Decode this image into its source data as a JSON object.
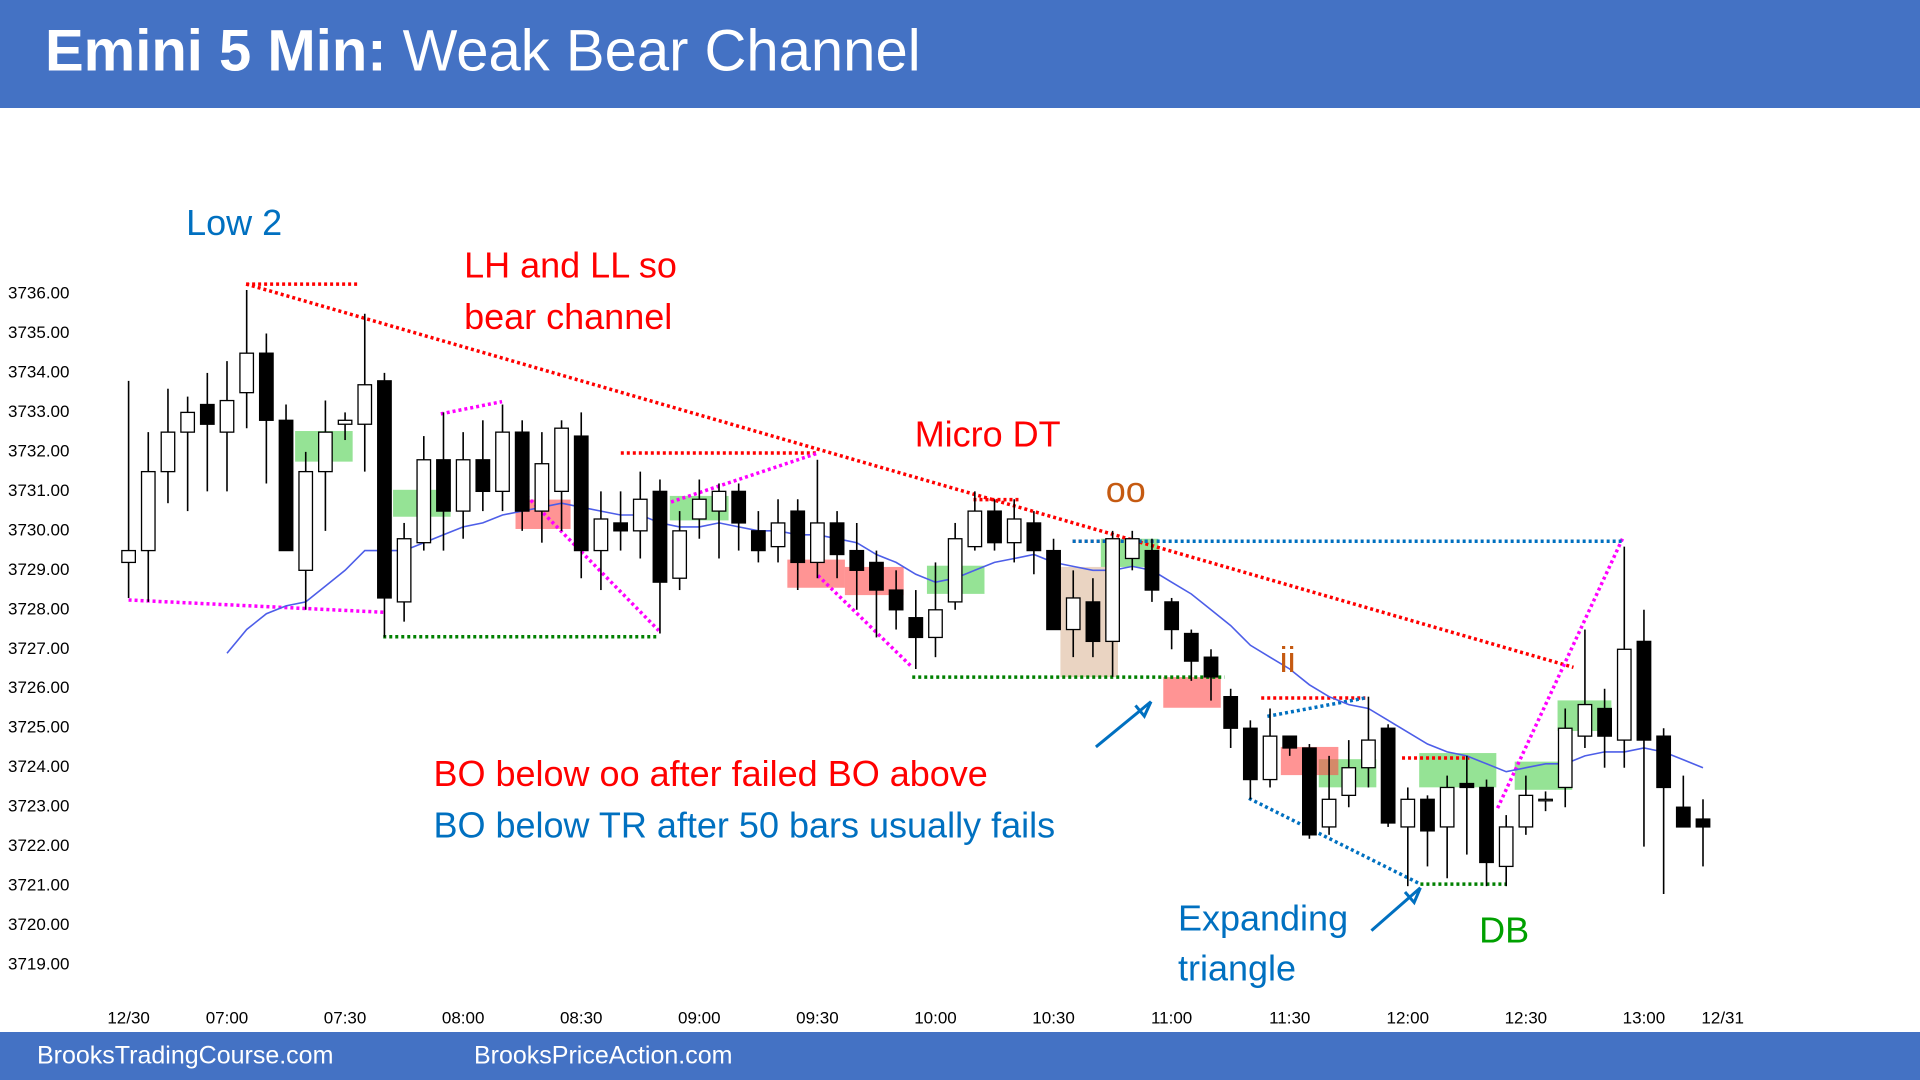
{
  "chart_data": {
    "type": "candlestick",
    "title": "Emini 5 Min:",
    "subtitle": "Weak Bear Channel",
    "footer": [
      "BrooksTradingCourse.com",
      "BrooksPriceAction.com"
    ],
    "categories": [
      "12/30",
      null,
      null,
      null,
      null,
      "07:00",
      null,
      null,
      null,
      null,
      null,
      "07:30",
      null,
      null,
      null,
      null,
      null,
      "08:00",
      null,
      null,
      null,
      null,
      null,
      "08:30",
      null,
      null,
      null,
      null,
      null,
      "09:00",
      null,
      null,
      null,
      null,
      null,
      "09:30",
      null,
      null,
      null,
      null,
      null,
      "10:00",
      null,
      null,
      null,
      null,
      null,
      "10:30",
      null,
      null,
      null,
      null,
      null,
      "11:00",
      null,
      null,
      null,
      null,
      null,
      "11:30",
      null,
      null,
      null,
      null,
      null,
      "12:00",
      null,
      null,
      null,
      null,
      null,
      "12:30",
      null,
      null,
      null,
      null,
      null,
      "13:00",
      null,
      null,
      null,
      "12/31"
    ],
    "open": [
      3729.2,
      3729.5,
      3731.5,
      3732.5,
      3733.2,
      3732.5,
      3733.5,
      3734.5,
      3732.8,
      3729,
      3731.5,
      3732.7,
      3732.7,
      3733.8,
      3728.2,
      3729.7,
      3731.8,
      3730.5,
      3731.8,
      3731,
      3732.5,
      3730.5,
      3731,
      3732.4,
      3729.5,
      3730.2,
      3730,
      3731,
      3728.8,
      3730.3,
      3730.5,
      3731,
      3730,
      3729.6,
      3730.5,
      3729.2,
      3730.2,
      3729.5,
      3729.2,
      3728.5,
      3727.8,
      3727.3,
      3728.2,
      3729.6,
      3730.5,
      3729.7,
      3730.2,
      3729.5,
      3727.5,
      3728.2,
      3727.2,
      3729.3,
      3729.5,
      3728.2,
      3727.4,
      3726.8,
      3725.8,
      3725,
      3723.7,
      3724.8,
      3724.5,
      3722.5,
      3723.3,
      3724,
      3725,
      3722.5,
      3723.2,
      3722.5,
      3723.6,
      3723.5,
      3721.5,
      3722.5,
      3723.2,
      3723.5,
      3724.8,
      3725.5,
      3724.7,
      3727.2,
      3724.8,
      3723,
      3722.7,
      null
    ],
    "high": [
      3733.8,
      3732.5,
      3733.6,
      3733.4,
      3734,
      3734.3,
      3736.1,
      3735,
      3733.2,
      3732,
      3733.3,
      3733,
      3735.5,
      3734,
      3730.2,
      3732.4,
      3733,
      3732.5,
      3732.8,
      3733.2,
      3732.8,
      3732.5,
      3732.8,
      3733,
      3731,
      3731,
      3731.5,
      3731.3,
      3730.5,
      3731.3,
      3731.2,
      3731.2,
      3730.5,
      3730.8,
      3730.8,
      3731.8,
      3730.5,
      3730.2,
      3729.5,
      3729,
      3728.5,
      3729.2,
      3730.2,
      3731,
      3730.8,
      3730.8,
      3730.5,
      3729.8,
      3729,
      3728.8,
      3730,
      3730,
      3729.8,
      3728.3,
      3727.5,
      3727,
      3726,
      3725.2,
      3725.5,
      3724.8,
      3724.6,
      3724.3,
      3724.7,
      3725.8,
      3725.1,
      3723.5,
      3723.3,
      3723.8,
      3724.3,
      3723.7,
      3722.8,
      3723.8,
      3723.4,
      3725.5,
      3727.5,
      3726,
      3729.6,
      3728,
      3725,
      3723.8,
      3723.2,
      null
    ],
    "low": [
      3728.3,
      3728.2,
      3730.7,
      3730.5,
      3731,
      3731,
      3732.6,
      3731.2,
      3729.5,
      3728,
      3730,
      3732.3,
      3731.5,
      3727.3,
      3727.7,
      3729.5,
      3729.5,
      3729.8,
      3730.5,
      3730.5,
      3730,
      3729.7,
      3730,
      3728.8,
      3728.5,
      3729.5,
      3729.3,
      3727.4,
      3728.5,
      3729.8,
      3729.3,
      3729.5,
      3729.2,
      3729.2,
      3728.5,
      3728.8,
      3728.8,
      3728,
      3727.3,
      3727.5,
      3726.5,
      3726.8,
      3728,
      3729.5,
      3729.5,
      3729.2,
      3728.9,
      3727.5,
      3726.8,
      3726.8,
      3726.3,
      3729,
      3728.2,
      3727,
      3726.2,
      3725.7,
      3724.5,
      3723.2,
      3723.5,
      3724.3,
      3722.2,
      3722.3,
      3723,
      3723.5,
      3722.5,
      3721,
      3721.5,
      3721.2,
      3721.8,
      3721,
      3721,
      3722.3,
      3722.9,
      3723,
      3724.5,
      3724,
      3724,
      3722,
      3720.8,
      3722.5,
      3721.5,
      null
    ],
    "close": [
      3729.5,
      3731.5,
      3732.5,
      3733,
      3732.7,
      3733.3,
      3734.5,
      3732.8,
      3729.5,
      3731.5,
      3732.5,
      3732.8,
      3733.7,
      3728.3,
      3729.8,
      3731.8,
      3730.5,
      3731.8,
      3731,
      3732.5,
      3730.5,
      3731.7,
      3732.6,
      3729.5,
      3730.3,
      3730,
      3730.8,
      3728.7,
      3730,
      3730.8,
      3731,
      3730.2,
      3729.5,
      3730.2,
      3729.2,
      3730.2,
      3729.4,
      3729,
      3728.5,
      3728,
      3727.3,
      3728,
      3729.8,
      3730.5,
      3729.7,
      3730.3,
      3729.5,
      3727.5,
      3728.3,
      3727.2,
      3729.8,
      3729.8,
      3728.5,
      3727.5,
      3726.7,
      3726.3,
      3725,
      3723.7,
      3724.8,
      3724.5,
      3722.3,
      3723.2,
      3724,
      3724.7,
      3722.6,
      3723.2,
      3722.4,
      3723.5,
      3723.5,
      3721.6,
      3722.5,
      3723.3,
      3723.2,
      3725,
      3725.6,
      3724.8,
      3727,
      3724.7,
      3723.5,
      3722.5,
      3722.5,
      null
    ],
    "up_color": "#ffffff",
    "down_color": "#000000",
    "ema": {
      "color": "#4d5ee8",
      "values": [
        null,
        null,
        null,
        null,
        null,
        3726.9,
        3727.5,
        3727.9,
        3728.1,
        3728.2,
        3728.6,
        3729,
        3729.5,
        3729.5,
        3729.5,
        3729.7,
        3729.9,
        3730.1,
        3730.2,
        3730.4,
        3730.5,
        3730.6,
        3730.7,
        3730.6,
        3730.5,
        3730.4,
        3730.4,
        3730.2,
        3730.1,
        3730.1,
        3730.2,
        3730.1,
        3730,
        3730,
        3729.9,
        3729.9,
        3729.8,
        3729.7,
        3729.4,
        3729.2,
        3728.9,
        3728.7,
        3728.8,
        3729,
        3729.2,
        3729.3,
        3729.4,
        3729.2,
        3729.1,
        3729,
        3729,
        3729.1,
        3729,
        3728.7,
        3728.4,
        3728,
        3727.6,
        3727.1,
        3726.8,
        3726.5,
        3726.1,
        3725.8,
        3725.6,
        3725.5,
        3725.2,
        3724.9,
        3724.6,
        3724.4,
        3724.3,
        3724.1,
        3723.9,
        3724,
        3724.1,
        3724.1,
        3724.3,
        3724.4,
        3724.4,
        3724.5,
        3724.4,
        3724.2,
        3724,
        null
      ]
    },
    "ylim": [
      3718,
      3738
    ],
    "yticks": [
      {
        "value": 3719,
        "label": "3719.00"
      },
      {
        "value": 3720,
        "label": "3720.00"
      },
      {
        "value": 3721,
        "label": "3721.00"
      },
      {
        "value": 3722,
        "label": "3722.00"
      },
      {
        "value": 3723,
        "label": "3723.00"
      },
      {
        "value": 3724,
        "label": "3724.00"
      },
      {
        "value": 3725,
        "label": "3725.00"
      },
      {
        "value": 3726,
        "label": "3726.00"
      },
      {
        "value": 3727,
        "label": "3727.00"
      },
      {
        "value": 3728,
        "label": "3728.00"
      },
      {
        "value": 3729,
        "label": "3729.00"
      },
      {
        "value": 3730,
        "label": "3730.00"
      },
      {
        "value": 3731,
        "label": "3731.00"
      },
      {
        "value": 3732,
        "label": "3732.00"
      },
      {
        "value": 3733,
        "label": "3733.00"
      },
      {
        "value": 3734,
        "label": "3734.00"
      },
      {
        "value": 3735,
        "label": "3735.00"
      },
      {
        "value": 3736,
        "label": "3736.00"
      }
    ],
    "grid": false,
    "annotations": [
      {
        "text": "Low 2",
        "color": "#0070c0"
      },
      {
        "text": "LH and LL so",
        "color": "#ff0000"
      },
      {
        "text": "bear channel",
        "color": "#ff0000"
      },
      {
        "text": "Micro DT",
        "color": "#ff0000"
      },
      {
        "text": "oo",
        "color": "#c55a11"
      },
      {
        "text": "ii",
        "color": "#c55a11"
      },
      {
        "text": "BO below oo after failed BO above",
        "color": "#ff0000"
      },
      {
        "text": "BO below TR after 50 bars usually fails",
        "color": "#0070c0"
      },
      {
        "text": "Expanding",
        "color": "#0070c0"
      },
      {
        "text": "triangle",
        "color": "#0070c0"
      },
      {
        "text": "DB",
        "color": "#00a000"
      }
    ]
  }
}
